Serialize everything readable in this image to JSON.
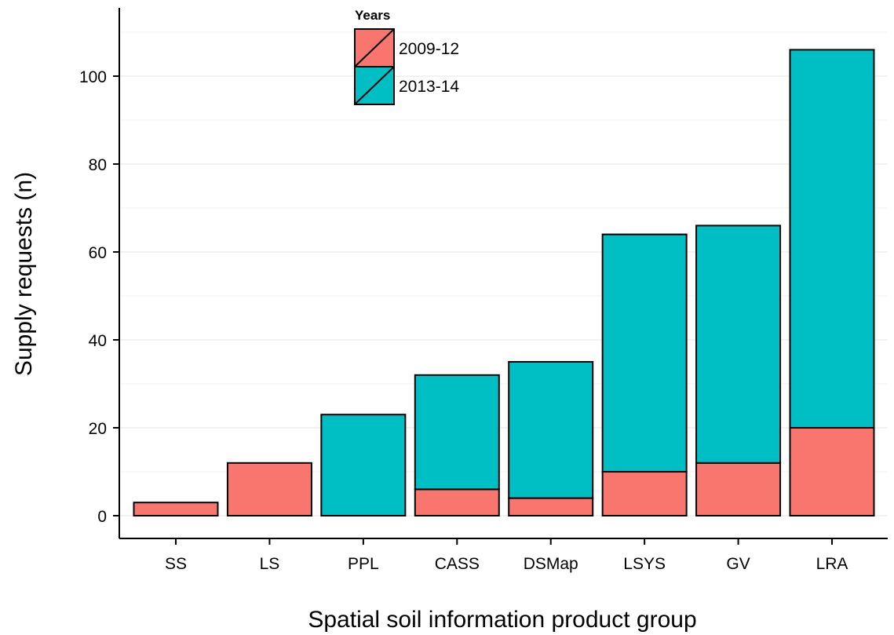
{
  "chart_data": {
    "type": "bar",
    "stacked": true,
    "title": "",
    "xlabel": "Spatial soil information product group",
    "ylabel": "Supply requests (n)",
    "categories": [
      "SS",
      "LS",
      "PPL",
      "CASS",
      "DSMap",
      "LSYS",
      "GV",
      "LRA"
    ],
    "series": [
      {
        "name": "2009-12",
        "color": "#F8766D",
        "values": [
          3,
          12,
          0,
          6,
          4,
          10,
          12,
          20
        ]
      },
      {
        "name": "2013-14",
        "color": "#00BFC4",
        "values": [
          0,
          0,
          23,
          26,
          31,
          54,
          54,
          86
        ]
      }
    ],
    "ylim": [
      0,
      112
    ],
    "yticks": [
      0,
      20,
      40,
      60,
      80,
      100
    ],
    "grid": true,
    "legend": {
      "title": "Years",
      "position": "top-center"
    }
  }
}
